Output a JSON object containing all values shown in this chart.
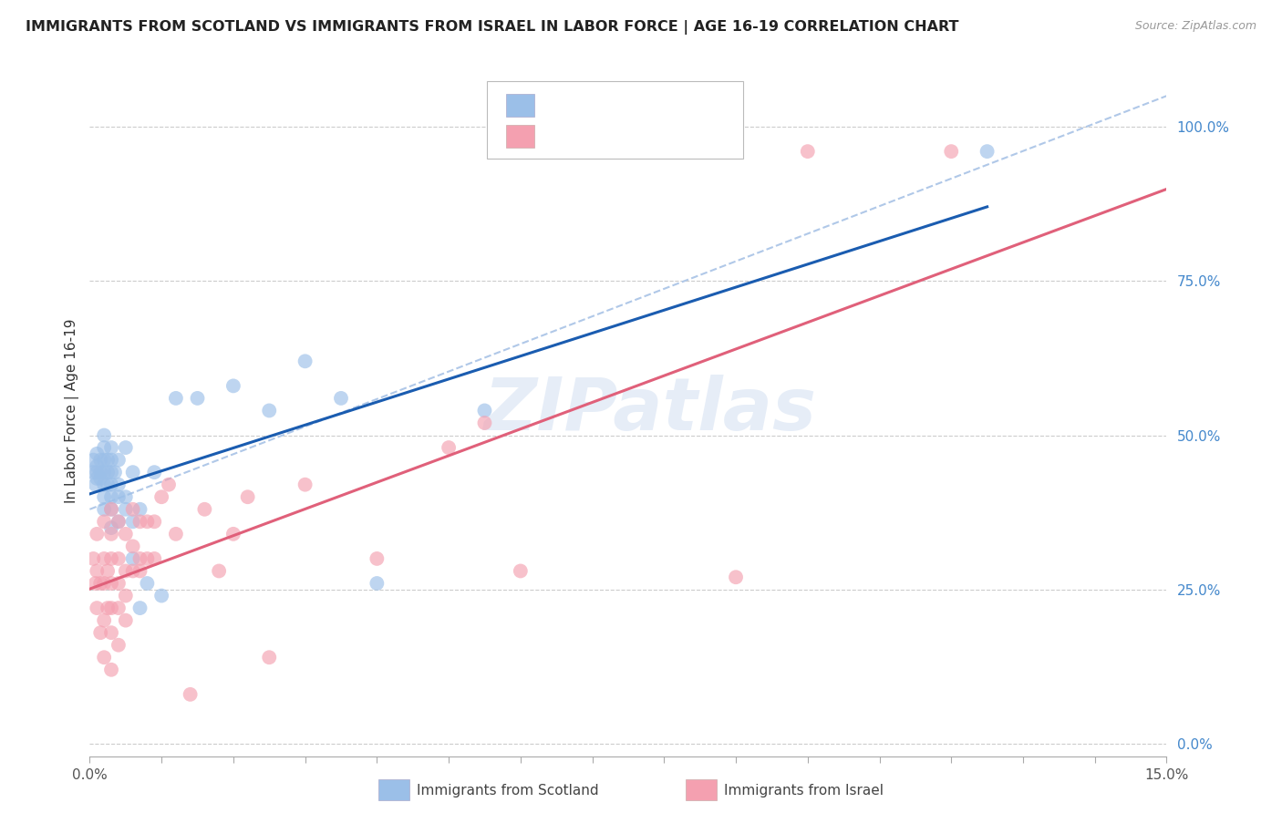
{
  "title": "IMMIGRANTS FROM SCOTLAND VS IMMIGRANTS FROM ISRAEL IN LABOR FORCE | AGE 16-19 CORRELATION CHART",
  "source": "Source: ZipAtlas.com",
  "ylabel": "In Labor Force | Age 16-19",
  "right_yticks": [
    0.0,
    0.25,
    0.5,
    0.75,
    1.0
  ],
  "right_yticklabels": [
    "0.0%",
    "25.0%",
    "50.0%",
    "75.0%",
    "100.0%"
  ],
  "xlim": [
    0.0,
    0.15
  ],
  "ylim": [
    -0.02,
    1.1
  ],
  "scotland_color": "#9BBFE8",
  "israel_color": "#F4A0B0",
  "scotland_line_color": "#1A5CB0",
  "israel_line_color": "#E0607A",
  "dashed_line_color": "#B0C8E8",
  "legend_r_color": "#1A5CB0",
  "legend_n_color": "#E05050",
  "watermark_text": "ZIPatlas",
  "scotland_x": [
    0.0005,
    0.0005,
    0.0008,
    0.001,
    0.001,
    0.001,
    0.001,
    0.0015,
    0.0015,
    0.0015,
    0.002,
    0.002,
    0.002,
    0.002,
    0.002,
    0.002,
    0.002,
    0.0025,
    0.0025,
    0.0025,
    0.003,
    0.003,
    0.003,
    0.003,
    0.003,
    0.003,
    0.003,
    0.0035,
    0.004,
    0.004,
    0.004,
    0.004,
    0.005,
    0.005,
    0.005,
    0.006,
    0.006,
    0.006,
    0.007,
    0.007,
    0.008,
    0.009,
    0.01,
    0.012,
    0.015,
    0.02,
    0.025,
    0.03,
    0.035,
    0.04,
    0.055,
    0.125
  ],
  "scotland_y": [
    0.44,
    0.46,
    0.42,
    0.43,
    0.44,
    0.45,
    0.47,
    0.43,
    0.44,
    0.46,
    0.38,
    0.4,
    0.42,
    0.44,
    0.46,
    0.48,
    0.5,
    0.42,
    0.44,
    0.46,
    0.35,
    0.38,
    0.4,
    0.42,
    0.44,
    0.46,
    0.48,
    0.44,
    0.36,
    0.4,
    0.42,
    0.46,
    0.38,
    0.4,
    0.48,
    0.3,
    0.36,
    0.44,
    0.22,
    0.38,
    0.26,
    0.44,
    0.24,
    0.56,
    0.56,
    0.58,
    0.54,
    0.62,
    0.56,
    0.26,
    0.54,
    0.96
  ],
  "israel_x": [
    0.0005,
    0.0008,
    0.001,
    0.001,
    0.001,
    0.0015,
    0.0015,
    0.002,
    0.002,
    0.002,
    0.002,
    0.002,
    0.0025,
    0.0025,
    0.003,
    0.003,
    0.003,
    0.003,
    0.003,
    0.003,
    0.003,
    0.004,
    0.004,
    0.004,
    0.004,
    0.004,
    0.005,
    0.005,
    0.005,
    0.005,
    0.006,
    0.006,
    0.006,
    0.007,
    0.007,
    0.007,
    0.008,
    0.008,
    0.009,
    0.009,
    0.01,
    0.011,
    0.012,
    0.014,
    0.016,
    0.018,
    0.02,
    0.022,
    0.025,
    0.03,
    0.04,
    0.05,
    0.055,
    0.06,
    0.09,
    0.1,
    0.12
  ],
  "israel_y": [
    0.3,
    0.26,
    0.22,
    0.28,
    0.34,
    0.18,
    0.26,
    0.14,
    0.2,
    0.26,
    0.3,
    0.36,
    0.22,
    0.28,
    0.12,
    0.18,
    0.22,
    0.26,
    0.3,
    0.34,
    0.38,
    0.16,
    0.22,
    0.26,
    0.3,
    0.36,
    0.2,
    0.24,
    0.28,
    0.34,
    0.28,
    0.32,
    0.38,
    0.28,
    0.3,
    0.36,
    0.3,
    0.36,
    0.3,
    0.36,
    0.4,
    0.42,
    0.34,
    0.08,
    0.38,
    0.28,
    0.34,
    0.4,
    0.14,
    0.42,
    0.3,
    0.48,
    0.52,
    0.28,
    0.27,
    0.96,
    0.96
  ]
}
